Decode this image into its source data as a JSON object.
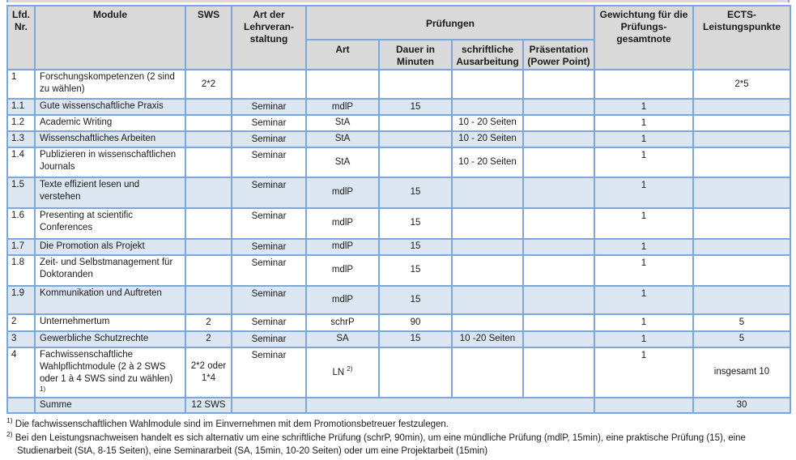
{
  "table": {
    "header": {
      "lfd_nr": "Lfd. Nr.",
      "module": "Module",
      "sws": "SWS",
      "art_lv": "Art der Lehrveran-staltung",
      "pruefungen": "Prüfungen",
      "art": "Art",
      "dauer": "Dauer in Minuten",
      "schriftlich": "schriftliche Ausarbeitung",
      "praesentation": "Präsentation (Power Point)",
      "gewichtung": "Gewichtung für die Prüfungs-gesamtnote",
      "ects": "ECTS-Leistungspunkte"
    },
    "rows": [
      {
        "num": "1",
        "module": "Forschungskompetenzen (2 sind zu wählen)",
        "sws": "2*2",
        "ects": "2*5",
        "shaded": false
      },
      {
        "num": "1.1",
        "module": "Gute wissenschaftliche Praxis",
        "lv": "Seminar",
        "art": "mdlP",
        "dauer": "15",
        "gew": "1",
        "shaded": true
      },
      {
        "num": "1.2",
        "module": "Academic Writing",
        "lv": "Seminar",
        "art": "StA",
        "schr": "10 - 20 Seiten",
        "gew": "1",
        "shaded": false
      },
      {
        "num": "1.3",
        "module": "Wissenschaftliches Arbeiten",
        "lv": "Seminar",
        "art": "StA",
        "schr": "10 - 20 Seiten",
        "gew": "1",
        "shaded": true
      },
      {
        "num": "1.4",
        "module": "Publizieren in wissenschaftlichen Journals",
        "lv": "Seminar",
        "art": "StA",
        "schr": "10 - 20 Seiten",
        "gew": "1",
        "shaded": false
      },
      {
        "num": "1.5",
        "module": "Texte effizient lesen und verstehen",
        "lv": "Seminar",
        "art": "mdlP",
        "dauer": "15",
        "gew": "1",
        "shaded": true
      },
      {
        "num": "1.6",
        "module": "Presenting at scientific Conferences",
        "lv": "Seminar",
        "art": "mdlP",
        "dauer": "15",
        "gew": "1",
        "shaded": false
      },
      {
        "num": "1.7",
        "module": "Die Promotion als Projekt",
        "lv": "Seminar",
        "art": "mdlP",
        "dauer": "15",
        "gew": "1",
        "shaded": true
      },
      {
        "num": "1.8",
        "module": "Zeit- und Selbstmanagement für Doktoranden",
        "lv": "Seminar",
        "art": "mdlP",
        "dauer": "15",
        "gew": "1",
        "shaded": false
      },
      {
        "num": "1.9",
        "module": "Kommunikation und Auftreten",
        "lv": "Seminar",
        "art": "mdlP",
        "dauer": "15",
        "gew": "1",
        "shaded": true
      },
      {
        "num": "2",
        "module": "Unternehmertum",
        "sws": "2",
        "lv": "Seminar",
        "art": "schrP",
        "dauer": "90",
        "gew": "1",
        "ects": "5",
        "shaded": false
      },
      {
        "num": "3",
        "module": "Gewerbliche Schutzrechte",
        "sws": "2",
        "lv": "Seminar",
        "art": "SA",
        "dauer": "15",
        "schr": "10 -20 Seiten",
        "gew": "1",
        "ects": "5",
        "shaded": true
      },
      {
        "num": "4",
        "module": "Fachwissenschaftliche Wahlpflichtmodule (2 à 2 SWS oder 1 à 4 SWS sind zu wählen)",
        "module_sup": "1)",
        "sws": "2*2 oder 1*4",
        "lv": "Seminar",
        "art": "LN",
        "art_sup": "2)",
        "gew": "1",
        "ects": "insgesamt 10",
        "shaded": false
      },
      {
        "summe": true,
        "module": "Summe",
        "sws": "12 SWS",
        "ects": "30",
        "shaded": true
      }
    ]
  },
  "footnotes": [
    {
      "marker": "1)",
      "text": "Die fachwissenschaftlichen Wahlmodule sind im Einvernehmen mit dem Promotionsbetreuer festzulegen."
    },
    {
      "marker": "2)",
      "text": "Bei den Leistungsnachweisen handelt es sich alternativ um eine schriftliche Prüfung (schrP, 90min), um eine mündliche Prüfung (mdlP, 15min), eine praktische Prüfung (15), eine Studienarbeit (StA, 8-15 Seiten), eine Seminararbeit (SA, 15min, 10-20 Seiten) oder um eine Projektarbeit (15min)"
    }
  ],
  "colors": {
    "header_bg": "#d9d9d9",
    "row_shaded_bg": "#dce6f1",
    "border": "#7da7dc",
    "text": "#1a1a1a",
    "page_bg": "#ffffff"
  }
}
